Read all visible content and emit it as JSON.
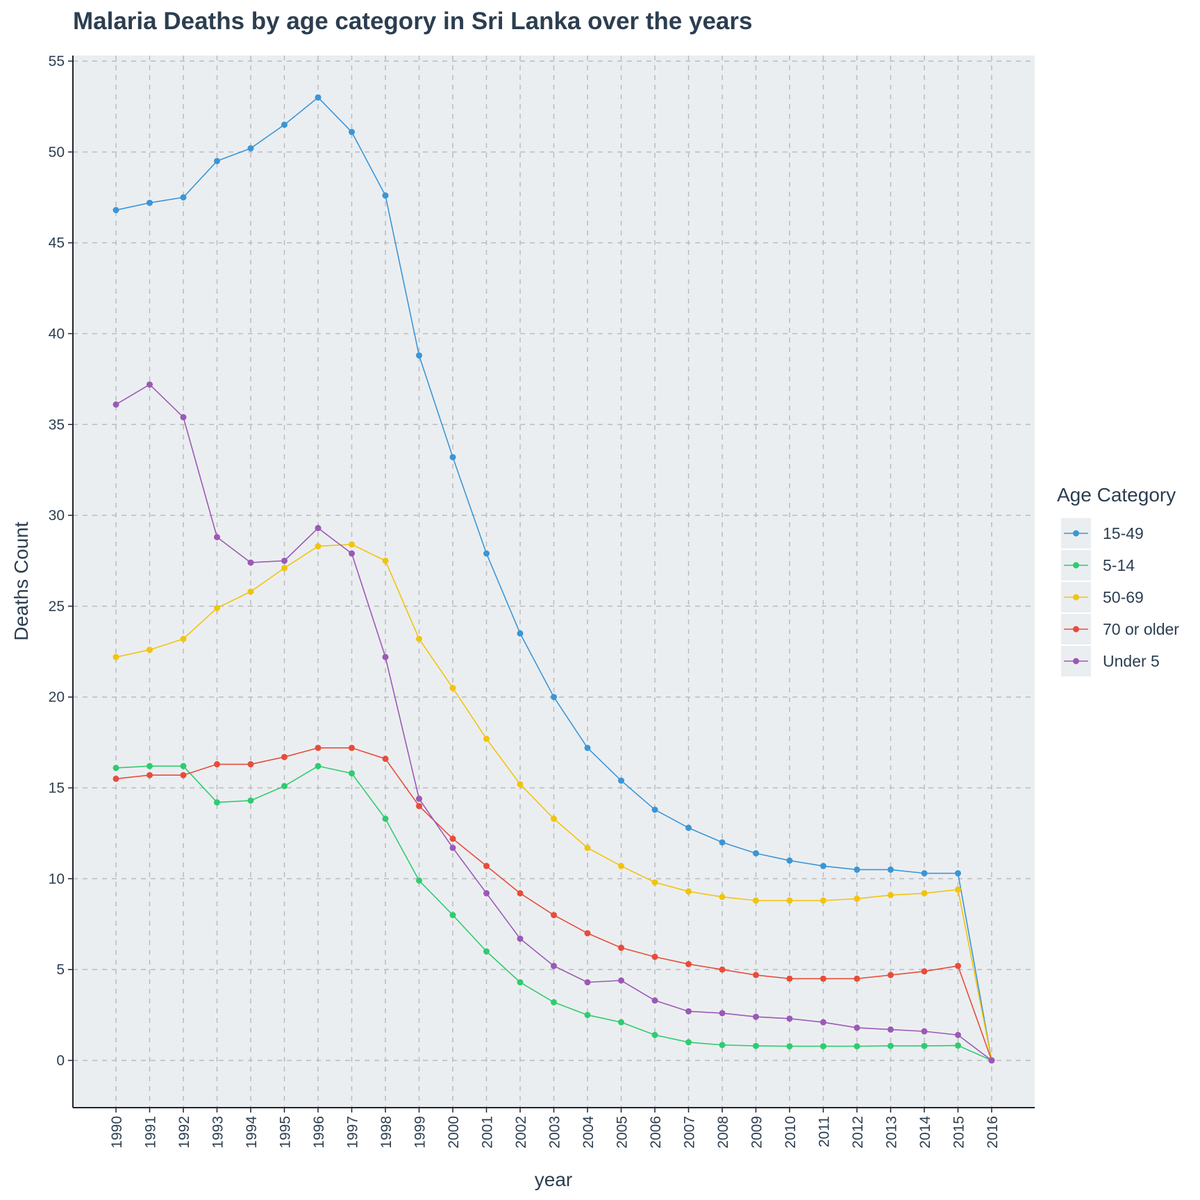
{
  "chart_data": {
    "type": "line",
    "title": "Malaria Deaths by age category in Sri Lanka over the years",
    "xlabel": "year",
    "ylabel": "Deaths Count",
    "x": [
      1990,
      1991,
      1992,
      1993,
      1994,
      1995,
      1996,
      1997,
      1998,
      1999,
      2000,
      2001,
      2002,
      2003,
      2004,
      2005,
      2006,
      2007,
      2008,
      2009,
      2010,
      2011,
      2012,
      2013,
      2014,
      2015,
      2016
    ],
    "x_tick_labels": [
      "1990",
      "1991",
      "1992",
      "1993",
      "1994",
      "1995",
      "1996",
      "1997",
      "1998",
      "1999",
      "2000",
      "2001",
      "2002",
      "2003",
      "2004",
      "2005",
      "2006",
      "2007",
      "2008",
      "2009",
      "2010",
      "2011",
      "2012",
      "2013",
      "2014",
      "2015",
      "2016"
    ],
    "ylim": [
      -2.7,
      55.5
    ],
    "y_ticks": [
      0,
      5,
      10,
      15,
      20,
      25,
      30,
      35,
      40,
      45,
      50,
      55
    ],
    "y_tick_labels": [
      "0",
      "5",
      "10",
      "15",
      "20",
      "25",
      "30",
      "35",
      "40",
      "45",
      "50",
      "55"
    ],
    "grid": true,
    "grid_style": "dashed",
    "panel_background": "#ebeef0",
    "legend_title": "Age Category",
    "legend_position": "right",
    "series": [
      {
        "name": "15-49",
        "color": "#3a96d8",
        "values": [
          46.8,
          47.2,
          47.5,
          49.5,
          50.2,
          51.5,
          53.0,
          51.1,
          47.6,
          38.8,
          33.2,
          27.9,
          23.5,
          20.0,
          17.2,
          15.4,
          13.8,
          12.8,
          12.0,
          11.4,
          11.0,
          10.7,
          10.5,
          10.5,
          10.3,
          10.3,
          0
        ]
      },
      {
        "name": "5-14",
        "color": "#2ecc71",
        "values": [
          16.1,
          16.2,
          16.2,
          14.2,
          14.3,
          15.1,
          16.2,
          15.8,
          13.3,
          9.9,
          8.0,
          6.0,
          4.3,
          3.2,
          2.5,
          2.1,
          1.4,
          1.0,
          0.85,
          0.8,
          0.78,
          0.78,
          0.78,
          0.8,
          0.8,
          0.82,
          0
        ]
      },
      {
        "name": "50-69",
        "color": "#f1c40f",
        "values": [
          22.2,
          22.6,
          23.2,
          24.9,
          25.8,
          27.1,
          28.3,
          28.4,
          27.5,
          23.2,
          20.5,
          17.7,
          15.2,
          13.3,
          11.7,
          10.7,
          9.8,
          9.3,
          9.0,
          8.8,
          8.8,
          8.8,
          8.9,
          9.1,
          9.2,
          9.4,
          0
        ]
      },
      {
        "name": "70 or older",
        "color": "#e74c3c",
        "values": [
          15.5,
          15.7,
          15.7,
          16.3,
          16.3,
          16.7,
          17.2,
          17.2,
          16.6,
          14.0,
          12.2,
          10.7,
          9.2,
          8.0,
          7.0,
          6.2,
          5.7,
          5.3,
          5.0,
          4.7,
          4.5,
          4.5,
          4.5,
          4.7,
          4.9,
          5.2,
          0
        ]
      },
      {
        "name": "Under 5",
        "color": "#9b59b6",
        "values": [
          36.1,
          37.2,
          35.4,
          28.8,
          27.4,
          27.5,
          29.3,
          27.9,
          22.2,
          14.4,
          11.7,
          9.2,
          6.7,
          5.2,
          4.3,
          4.4,
          3.3,
          2.7,
          2.6,
          2.4,
          2.3,
          2.1,
          1.8,
          1.7,
          1.6,
          1.4,
          0
        ]
      }
    ]
  }
}
